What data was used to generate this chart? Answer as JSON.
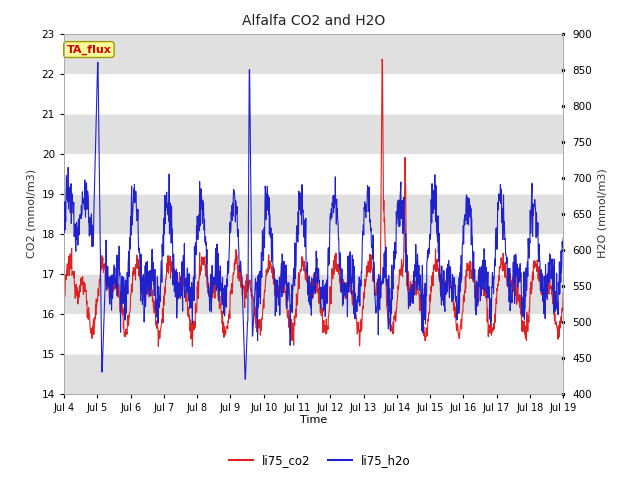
{
  "title": "Alfalfa CO2 and H2O",
  "xlabel": "Time",
  "ylabel_left": "CO2 (mmol/m3)",
  "ylabel_right": "H2O (mmol/m3)",
  "ylim_left": [
    14.0,
    23.0
  ],
  "ylim_right": [
    400,
    900
  ],
  "yticks_left": [
    14.0,
    15.0,
    16.0,
    17.0,
    18.0,
    19.0,
    20.0,
    21.0,
    22.0,
    23.0
  ],
  "yticks_right": [
    400,
    450,
    500,
    550,
    600,
    650,
    700,
    750,
    800,
    850,
    900
  ],
  "xtick_labels": [
    "Jul 4",
    "Jul 5",
    "Jul 6",
    "Jul 7",
    "Jul 8",
    "Jul 9",
    "Jul 10",
    "Jul 11",
    "Jul 12",
    "Jul 13",
    "Jul 14",
    "Jul 15",
    "Jul 16",
    "Jul 17",
    "Jul 18",
    "Jul 19"
  ],
  "tag_label": "TA_flux",
  "tag_bg": "#ffff99",
  "tag_border": "#999900",
  "tag_text_color": "#cc0000",
  "line_co2_color": "#dd2222",
  "line_h2o_color": "#2222cc",
  "legend_co2": "li75_co2",
  "legend_h2o": "li75_h2o",
  "plot_bg_light": "#ffffff",
  "plot_bg_dark": "#e0e0e0",
  "grid_color": "#ffffff",
  "fig_bg": "#ffffff"
}
